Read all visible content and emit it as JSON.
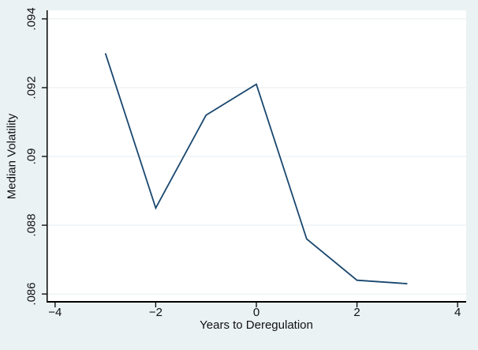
{
  "figure": {
    "background_color": "#eaf2f3",
    "plot_background_color": "#ffffff",
    "axis_color": "#000000",
    "grid_color": "#e6eef0",
    "text_color": "#111111"
  },
  "chart_data": {
    "type": "line",
    "title": "",
    "xlabel": "Years to Deregulation",
    "ylabel": "Median Volatility",
    "series": [
      {
        "name": "Median Volatility",
        "x": [
          -3,
          -2,
          -1,
          0,
          1,
          2,
          3
        ],
        "y": [
          0.093,
          0.0885,
          0.0912,
          0.0921,
          0.0876,
          0.0864,
          0.0863
        ],
        "color": "#1a476f",
        "line_width": 1.8
      }
    ],
    "xlim": [
      -4.17,
      4.17
    ],
    "ylim": [
      0.08575,
      0.09425
    ],
    "xticks": [
      -4,
      -2,
      0,
      2,
      4
    ],
    "xtick_labels": [
      "−4",
      "−2",
      "0",
      "2",
      "4"
    ],
    "yticks": [
      0.086,
      0.088,
      0.09,
      0.092,
      0.094
    ],
    "ytick_labels": [
      ".086",
      ".088",
      ".09",
      ".092",
      ".094"
    ],
    "grid": "horizontal",
    "legend": "none"
  }
}
